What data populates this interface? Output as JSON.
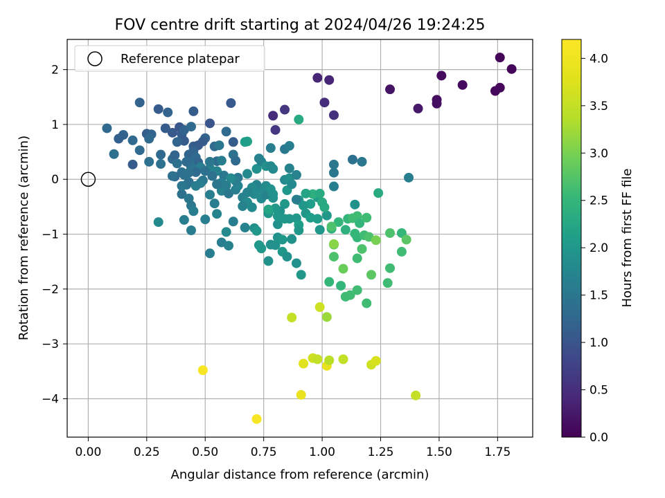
{
  "chart_data": {
    "type": "scatter",
    "title": "FOV centre drift starting at 2024/04/26 19:24:25",
    "xlabel": "Angular distance from reference (arcmin)",
    "ylabel": "Rotation from reference (arcmin)",
    "xlim": [
      -0.09,
      1.9
    ],
    "ylim": [
      -4.7,
      2.55
    ],
    "x_ticks": [
      0.0,
      0.25,
      0.5,
      0.75,
      1.0,
      1.25,
      1.5,
      1.75
    ],
    "x_tick_labels": [
      "0.00",
      "0.25",
      "0.50",
      "0.75",
      "1.00",
      "1.25",
      "1.50",
      "1.75"
    ],
    "y_ticks": [
      2,
      1,
      0,
      -1,
      -2,
      -3,
      -4
    ],
    "y_tick_labels": [
      "2",
      "1",
      "0",
      "−1",
      "−2",
      "−3",
      "−4"
    ],
    "grid": true,
    "legend": {
      "placement": "upper-left",
      "entries": [
        "Reference platepar"
      ]
    },
    "reference_point": {
      "x": 0.0,
      "y": 0.0
    },
    "colorbar": {
      "label": "Hours from first FF file",
      "colormap": "viridis",
      "range": [
        0.0,
        4.2
      ],
      "ticks": [
        0.0,
        0.5,
        1.0,
        1.5,
        2.0,
        2.5,
        3.0,
        3.5,
        4.0
      ],
      "tick_labels": [
        "0.0",
        "0.5",
        "1.0",
        "1.5",
        "2.0",
        "2.5",
        "3.0",
        "3.5",
        "4.0"
      ]
    },
    "points": [
      [
        1.76,
        2.22,
        0.05
      ],
      [
        1.81,
        2.01,
        0.06
      ],
      [
        1.51,
        1.89,
        0.12
      ],
      [
        1.6,
        1.72,
        0.1
      ],
      [
        1.76,
        1.67,
        0.08
      ],
      [
        1.74,
        1.61,
        0.07
      ],
      [
        1.49,
        1.45,
        0.15
      ],
      [
        1.49,
        1.38,
        0.15
      ],
      [
        1.29,
        1.64,
        0.2
      ],
      [
        1.41,
        1.29,
        0.25
      ],
      [
        0.98,
        1.85,
        0.4
      ],
      [
        1.03,
        1.81,
        0.4
      ],
      [
        1.01,
        1.4,
        0.5
      ],
      [
        1.05,
        1.17,
        0.55
      ],
      [
        0.84,
        1.27,
        0.6
      ],
      [
        0.79,
        1.16,
        0.5
      ],
      [
        0.8,
        0.9,
        0.6
      ],
      [
        0.61,
        1.39,
        1.05
      ],
      [
        0.22,
        1.4,
        1.2
      ],
      [
        0.3,
        1.28,
        1.1
      ],
      [
        0.34,
        1.22,
        1.2
      ],
      [
        0.45,
        1.24,
        1.1
      ],
      [
        0.08,
        0.93,
        1.3
      ],
      [
        0.15,
        0.81,
        1.2
      ],
      [
        0.13,
        0.74,
        1.15
      ],
      [
        0.19,
        0.71,
        1.3
      ],
      [
        0.25,
        0.83,
        1.1
      ],
      [
        0.27,
        0.82,
        1.2
      ],
      [
        0.26,
        0.74,
        1.3
      ],
      [
        0.33,
        0.93,
        1.1
      ],
      [
        0.36,
        0.85,
        1.05
      ],
      [
        0.39,
        0.95,
        1.0
      ],
      [
        0.4,
        0.82,
        1.1
      ],
      [
        0.41,
        0.9,
        1.2
      ],
      [
        0.44,
        0.96,
        1.3
      ],
      [
        0.52,
        1.02,
        1.0
      ],
      [
        0.5,
        0.75,
        1.2
      ],
      [
        0.49,
        0.69,
        1.1
      ],
      [
        0.47,
        0.62,
        1.05
      ],
      [
        0.41,
        0.7,
        1.1
      ],
      [
        0.38,
        0.68,
        1.2
      ],
      [
        0.22,
        0.53,
        1.3
      ],
      [
        0.31,
        0.45,
        1.3
      ],
      [
        0.11,
        0.46,
        1.4
      ],
      [
        0.19,
        0.27,
        1.1
      ],
      [
        0.26,
        0.32,
        1.4
      ],
      [
        0.31,
        0.28,
        1.4
      ],
      [
        0.36,
        0.37,
        1.3
      ],
      [
        0.37,
        0.44,
        1.2
      ],
      [
        0.43,
        0.45,
        1.2
      ],
      [
        0.45,
        0.6,
        1.1
      ],
      [
        0.45,
        0.52,
        1.2
      ],
      [
        0.46,
        0.4,
        1.3
      ],
      [
        0.47,
        0.31,
        1.2
      ],
      [
        0.44,
        0.22,
        1.5
      ],
      [
        0.43,
        0.3,
        1.4
      ],
      [
        0.42,
        0.32,
        1.3
      ],
      [
        0.4,
        0.13,
        1.4
      ],
      [
        0.37,
        0.05,
        1.3
      ],
      [
        0.38,
        0.29,
        1.4
      ],
      [
        0.41,
        0.08,
        1.4
      ],
      [
        0.42,
        -0.1,
        1.5
      ],
      [
        0.4,
        -0.27,
        1.4
      ],
      [
        0.43,
        -0.35,
        1.5
      ],
      [
        0.44,
        -0.48,
        1.5
      ],
      [
        0.45,
        -0.58,
        1.6
      ],
      [
        0.41,
        -0.74,
        1.6
      ],
      [
        0.3,
        -0.78,
        1.8
      ],
      [
        0.44,
        -0.93,
        1.6
      ],
      [
        0.5,
        -0.73,
        1.6
      ],
      [
        0.52,
        -1.35,
        1.6
      ],
      [
        0.57,
        -1.15,
        1.6
      ],
      [
        0.6,
        -1.21,
        1.7
      ],
      [
        0.62,
        -0.77,
        1.6
      ],
      [
        0.59,
        -0.96,
        1.8
      ],
      [
        0.54,
        -0.44,
        1.6
      ],
      [
        0.55,
        -0.63,
        1.7
      ],
      [
        0.52,
        -0.28,
        1.6
      ],
      [
        0.49,
        -0.02,
        1.5
      ],
      [
        0.48,
        0.22,
        1.6
      ],
      [
        0.52,
        0.2,
        1.7
      ],
      [
        0.55,
        0.33,
        1.3
      ],
      [
        0.54,
        0.6,
        1.3
      ],
      [
        0.56,
        0.62,
        1.5
      ],
      [
        0.59,
        0.87,
        1.3
      ],
      [
        0.62,
        0.68,
        1.1
      ],
      [
        0.62,
        0.45,
        1.4
      ],
      [
        0.63,
        0.34,
        1.3
      ],
      [
        0.57,
        0.34,
        1.6
      ],
      [
        0.55,
        0.15,
        1.7
      ],
      [
        0.58,
        0.07,
        1.5
      ],
      [
        0.57,
        -0.06,
        1.6
      ],
      [
        0.57,
        -0.21,
        1.7
      ],
      [
        0.6,
        -0.26,
        1.5
      ],
      [
        0.63,
        -0.19,
        1.6
      ],
      [
        0.64,
        -0.12,
        1.7
      ],
      [
        0.66,
        -0.33,
        1.7
      ],
      [
        0.68,
        -0.42,
        1.8
      ],
      [
        0.66,
        -0.49,
        1.7
      ],
      [
        0.7,
        -0.51,
        1.8
      ],
      [
        0.67,
        -0.88,
        1.7
      ],
      [
        0.71,
        -0.89,
        1.9
      ],
      [
        0.72,
        -0.94,
        2.0
      ],
      [
        0.73,
        -1.2,
        2.0
      ],
      [
        0.74,
        -1.26,
        2.0
      ],
      [
        0.77,
        -1.49,
        1.9
      ],
      [
        0.78,
        -1.19,
        1.9
      ],
      [
        0.8,
        -1.2,
        1.9
      ],
      [
        0.81,
        -1.06,
        1.9
      ],
      [
        0.83,
        -1.1,
        2.0
      ],
      [
        0.83,
        -1.32,
        2.0
      ],
      [
        0.85,
        -1.41,
        1.9
      ],
      [
        0.87,
        -1.09,
        1.9
      ],
      [
        0.89,
        -1.53,
        1.9
      ],
      [
        0.91,
        -1.74,
        2.0
      ],
      [
        0.86,
        -0.72,
        2.0
      ],
      [
        0.89,
        -0.71,
        2.0
      ],
      [
        0.9,
        -0.83,
        2.1
      ],
      [
        0.9,
        -0.93,
        2.0
      ],
      [
        0.93,
        -0.62,
        2.0
      ],
      [
        0.95,
        -0.7,
        2.1
      ],
      [
        0.98,
        -0.72,
        2.1
      ],
      [
        0.99,
        -0.92,
        2.0
      ],
      [
        1.02,
        -0.66,
        2.0
      ],
      [
        1.04,
        -0.9,
        2.4
      ],
      [
        1.07,
        -0.78,
        2.5
      ],
      [
        1.1,
        -0.92,
        2.4
      ],
      [
        1.11,
        -0.72,
        2.5
      ],
      [
        1.13,
        -0.71,
        2.6
      ],
      [
        1.14,
        -0.46,
        1.9
      ],
      [
        1.15,
        -0.67,
        2.6
      ],
      [
        1.16,
        -0.8,
        2.5
      ],
      [
        1.19,
        -0.7,
        2.6
      ],
      [
        1.14,
        -0.99,
        2.5
      ],
      [
        1.15,
        -1.06,
        2.5
      ],
      [
        1.17,
        -1.27,
        2.7
      ],
      [
        1.15,
        -1.44,
        2.6
      ],
      [
        1.18,
        -1.02,
        2.6
      ],
      [
        1.2,
        -1.05,
        2.7
      ],
      [
        1.23,
        -1.11,
        3.0
      ],
      [
        1.29,
        -0.98,
        2.7
      ],
      [
        1.34,
        -0.98,
        2.5
      ],
      [
        1.36,
        -1.1,
        2.8
      ],
      [
        1.34,
        -1.32,
        2.6
      ],
      [
        1.29,
        -1.62,
        2.6
      ],
      [
        1.28,
        -1.89,
        2.6
      ],
      [
        1.21,
        -1.74,
        2.8
      ],
      [
        1.19,
        -2.26,
        2.6
      ],
      [
        1.15,
        -2.02,
        2.6
      ],
      [
        1.12,
        -2.11,
        2.6
      ],
      [
        1.1,
        -2.14,
        2.6
      ],
      [
        1.08,
        -1.94,
        2.5
      ],
      [
        1.03,
        -1.87,
        2.5
      ],
      [
        1.09,
        -1.63,
        2.9
      ],
      [
        1.05,
        -1.41,
        2.7
      ],
      [
        1.05,
        -1.19,
        2.7
      ],
      [
        1.05,
        -1.18,
        3.1
      ],
      [
        1.04,
        -0.86,
        2.7
      ],
      [
        1.01,
        -0.51,
        2.3
      ],
      [
        0.98,
        -0.33,
        2.1
      ],
      [
        0.96,
        -0.27,
        2.4
      ],
      [
        0.95,
        -0.45,
        2.1
      ],
      [
        0.99,
        -0.26,
        2.3
      ],
      [
        1.0,
        -0.42,
        2.3
      ],
      [
        1.05,
        -0.13,
        1.6
      ],
      [
        1.05,
        0.12,
        1.5
      ],
      [
        1.05,
        0.27,
        1.5
      ],
      [
        1.13,
        0.36,
        1.4
      ],
      [
        1.17,
        0.32,
        1.5
      ],
      [
        1.24,
        -0.25,
        2.3
      ],
      [
        1.37,
        0.03,
        1.6
      ],
      [
        0.93,
        -0.26,
        2.2
      ],
      [
        0.92,
        -0.48,
        2.0
      ],
      [
        0.9,
        -0.38,
        2.0
      ],
      [
        0.85,
        -0.2,
        2.0
      ],
      [
        0.84,
        -0.45,
        2.0
      ],
      [
        0.82,
        -0.58,
        1.9
      ],
      [
        0.81,
        -0.82,
        1.9
      ],
      [
        0.81,
        -0.67,
        2.0
      ],
      [
        0.84,
        -0.72,
        2.0
      ],
      [
        0.8,
        -0.53,
        2.0
      ],
      [
        0.77,
        -0.62,
        2.0
      ],
      [
        0.77,
        -0.55,
        2.2
      ],
      [
        0.79,
        -0.34,
        1.9
      ],
      [
        0.74,
        -0.35,
        1.8
      ],
      [
        0.76,
        -0.28,
        1.7
      ],
      [
        0.76,
        -0.12,
        1.8
      ],
      [
        0.78,
        -0.18,
        1.9
      ],
      [
        0.79,
        -0.27,
        1.9
      ],
      [
        0.73,
        -0.18,
        1.8
      ],
      [
        0.72,
        -0.1,
        1.7
      ],
      [
        0.7,
        -0.15,
        1.8
      ],
      [
        0.71,
        -0.27,
        1.8
      ],
      [
        0.68,
        -0.24,
        1.7
      ],
      [
        0.68,
        0.1,
        1.8
      ],
      [
        0.72,
        0.19,
        1.9
      ],
      [
        0.74,
        0.32,
        1.7
      ],
      [
        0.73,
        0.38,
        1.7
      ],
      [
        0.76,
        0.24,
        1.9
      ],
      [
        0.78,
        0.24,
        1.8
      ],
      [
        0.79,
        0.19,
        1.8
      ],
      [
        0.78,
        0.57,
        1.6
      ],
      [
        0.84,
        0.55,
        1.5
      ],
      [
        0.86,
        0.61,
        1.6
      ],
      [
        0.84,
        -0.01,
        1.8
      ],
      [
        0.86,
        0.02,
        1.9
      ],
      [
        0.86,
        0.2,
        1.7
      ],
      [
        0.89,
        0.08,
        1.7
      ],
      [
        0.87,
        -0.09,
        1.8
      ],
      [
        0.89,
        -0.37,
        1.6
      ],
      [
        0.9,
        1.09,
        2.3
      ],
      [
        0.68,
        0.69,
        2.2
      ],
      [
        0.67,
        0.68,
        2.1
      ],
      [
        0.64,
        0.03,
        1.5
      ],
      [
        0.63,
        -0.03,
        1.6
      ],
      [
        0.61,
        0.02,
        1.8
      ],
      [
        0.59,
        -0.11,
        1.6
      ],
      [
        0.55,
        -0.09,
        1.5
      ],
      [
        0.53,
        0.06,
        1.4
      ],
      [
        0.52,
        0.32,
        1.5
      ],
      [
        0.5,
        0.15,
        1.4
      ],
      [
        0.46,
        0.13,
        1.3
      ],
      [
        0.43,
        0.12,
        1.4
      ],
      [
        0.43,
        -0.05,
        1.4
      ],
      [
        0.4,
        -0.12,
        1.5
      ],
      [
        0.46,
        -0.12,
        1.6
      ],
      [
        0.36,
        0.06,
        1.4
      ],
      [
        0.48,
        -0.07,
        1.6
      ],
      [
        0.87,
        -2.52,
        3.5
      ],
      [
        0.99,
        -2.33,
        3.6
      ],
      [
        1.02,
        -2.51,
        3.2
      ],
      [
        0.96,
        -3.26,
        3.6
      ],
      [
        0.98,
        -3.28,
        3.5
      ],
      [
        0.92,
        -3.36,
        3.8
      ],
      [
        1.02,
        -3.4,
        3.9
      ],
      [
        1.03,
        -3.3,
        3.4
      ],
      [
        1.09,
        -3.28,
        3.5
      ],
      [
        1.21,
        -3.38,
        3.6
      ],
      [
        1.23,
        -3.31,
        3.7
      ],
      [
        0.91,
        -3.93,
        3.9
      ],
      [
        1.4,
        -3.94,
        3.5
      ],
      [
        0.49,
        -3.48,
        4.1
      ],
      [
        0.72,
        -4.37,
        4.1
      ]
    ]
  }
}
